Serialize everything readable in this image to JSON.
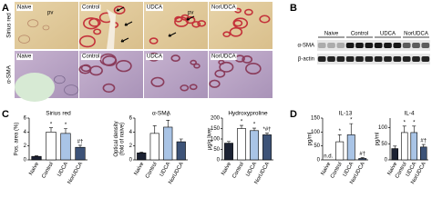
{
  "panel_labels": [
    "A",
    "B",
    "C",
    "D"
  ],
  "panel_a": {
    "row_labels": [
      "Sirius red",
      "α-SMA"
    ],
    "rows": [
      [
        "Naive",
        "Control",
        "UDCA",
        "NorUDCA"
      ],
      [
        "Naive",
        "Control",
        "UDCA",
        "NorUDCA"
      ]
    ],
    "pv_labels": [
      "pv",
      "pv"
    ]
  },
  "panel_b": {
    "lanes": [
      "Naive",
      "Control",
      "UDCA",
      "NorUDCA"
    ],
    "bands": [
      "α-SMA",
      "β-actin"
    ]
  },
  "chart_data": [
    {
      "type": "bar",
      "title": "Sirius red",
      "y_label": [
        "Pos. area (%)"
      ],
      "categories": [
        "Naive",
        "Control",
        "UDCA",
        "NorUDCA"
      ],
      "values": [
        0.5,
        4.0,
        3.8,
        1.8
      ],
      "errors": [
        0.1,
        0.6,
        0.7,
        0.3
      ],
      "annotations": [
        null,
        "*",
        "*",
        "#†"
      ],
      "colors": [
        "#1c2233",
        "#ffffff",
        "#a9c4e6",
        "#3d5378"
      ],
      "ylim": [
        0,
        6
      ],
      "yticks": [
        0,
        2,
        4,
        6
      ]
    },
    {
      "type": "bar",
      "title": "α-SMA",
      "y_label": [
        "Optical density",
        "(fold of naive)"
      ],
      "categories": [
        "Naive",
        "Control",
        "UDCA",
        "NorUDCA"
      ],
      "values": [
        1.0,
        3.8,
        4.7,
        2.6
      ],
      "errors": [
        0.1,
        1.1,
        1.0,
        0.4
      ],
      "annotations": [
        null,
        null,
        "*",
        null
      ],
      "colors": [
        "#1c2233",
        "#ffffff",
        "#a9c4e6",
        "#3d5378"
      ],
      "ylim": [
        0,
        6
      ],
      "yticks": [
        0,
        2,
        4,
        6
      ]
    },
    {
      "type": "bar",
      "title": "Hydroxyproline",
      "y_label": [
        "µg/g liver"
      ],
      "categories": [
        "Naive",
        "Control",
        "UDCA",
        "NorUDCA"
      ],
      "values": [
        80,
        150,
        140,
        120
      ],
      "errors": [
        8,
        15,
        12,
        8
      ],
      "annotations": [
        null,
        "*",
        "*",
        "*#†"
      ],
      "colors": [
        "#1c2233",
        "#ffffff",
        "#a9c4e6",
        "#3d5378"
      ],
      "ylim": [
        0,
        200
      ],
      "yticks": [
        0,
        50,
        100,
        150,
        200
      ]
    },
    {
      "type": "bar",
      "title": "IL-13",
      "y_label": [
        "pg/ml"
      ],
      "categories": [
        "Naive",
        "Control",
        "UDCA",
        "NorUDCA"
      ],
      "values": [
        null,
        65,
        90,
        5
      ],
      "errors": [
        null,
        25,
        40,
        3
      ],
      "annotations": [
        "n.d.",
        "*",
        "*",
        "#†"
      ],
      "colors": [
        "#1c2233",
        "#ffffff",
        "#a9c4e6",
        "#3d5378"
      ],
      "ylim": [
        0,
        150
      ],
      "yticks": [
        0,
        50,
        100,
        150
      ]
    },
    {
      "type": "bar",
      "title": "IL-4",
      "y_label": [
        "pg/ml"
      ],
      "categories": [
        "Naive",
        "Control",
        "UDCA",
        "NorUDCA"
      ],
      "values": [
        35,
        85,
        85,
        40
      ],
      "errors": [
        8,
        20,
        20,
        8
      ],
      "annotations": [
        null,
        "*",
        "*",
        "#†"
      ],
      "colors": [
        "#1c2233",
        "#ffffff",
        "#a9c4e6",
        "#3d5378"
      ],
      "ylim": [
        0,
        130
      ],
      "yticks": [
        0,
        50,
        100
      ]
    }
  ]
}
